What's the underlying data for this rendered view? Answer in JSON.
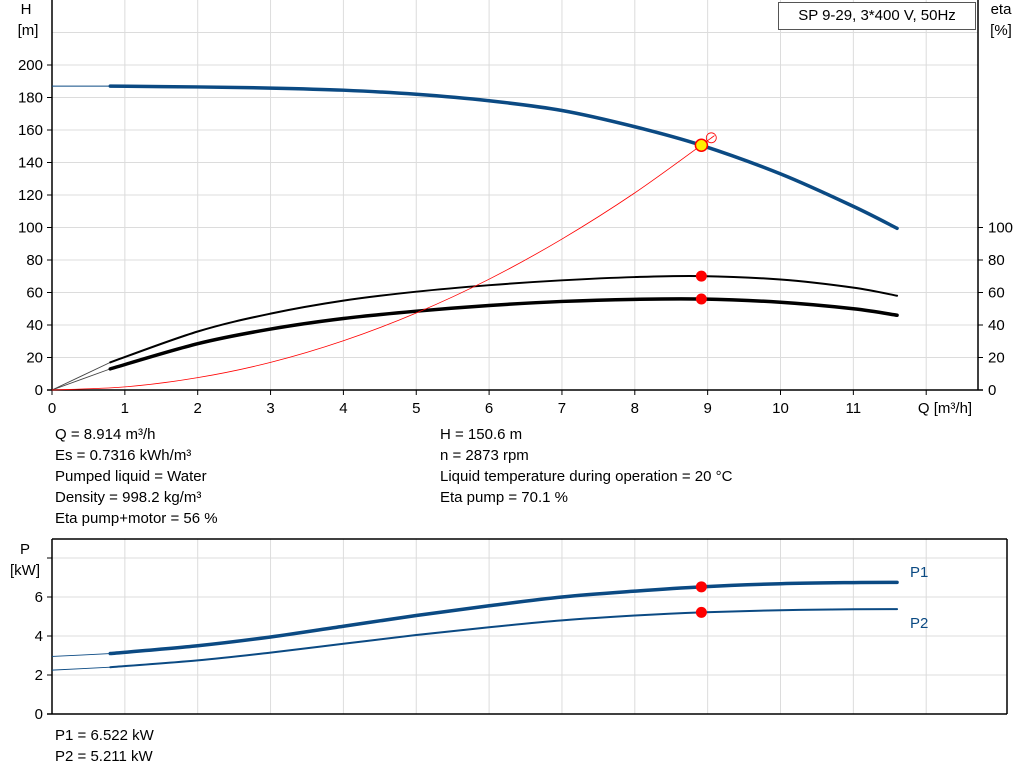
{
  "title": "SP 9-29, 3*400 V, 50Hz",
  "colors": {
    "head": "#0b4a83",
    "eta": "#000000",
    "system": "#ff0000",
    "power": "#0b4a83",
    "dutyPoint": "#ff0000",
    "dutyPointHead": "#ffee00"
  },
  "info_top": {
    "left": [
      "Q = 8.914 m³/h",
      "Es = 0.7316 kWh/m³",
      "Pumped liquid = Water",
      "Density = 998.2 kg/m³",
      "Eta pump+motor = 56 %"
    ],
    "right": [
      "H = 150.6 m",
      "n = 2873 rpm",
      "Liquid temperature during operation = 20 °C",
      "Eta pump = 70.1 %"
    ]
  },
  "info_bottom": [
    "P1 = 6.522 kW",
    "P2 = 5.211 kW"
  ],
  "chart_data": [
    {
      "type": "line",
      "xlabel": "Q [m³/h]",
      "ylabel": "H\n[m]",
      "y2label": "eta\n[%]",
      "xlim": [
        0,
        12.7
      ],
      "ylim": [
        0,
        240
      ],
      "y2lim": [
        0,
        240
      ],
      "xticks": [
        "0",
        "1",
        "2",
        "3",
        "4",
        "5",
        "6",
        "7",
        "8",
        "9",
        "10",
        "11"
      ],
      "yticks": [
        "0",
        "20",
        "40",
        "60",
        "80",
        "100",
        "120",
        "140",
        "160",
        "180",
        "200"
      ],
      "y2ticks": [
        "0",
        "20",
        "40",
        "60",
        "80",
        "100"
      ],
      "grid": true,
      "series": [
        {
          "id": "H",
          "x": [
            0.8,
            2,
            3,
            4,
            5,
            6,
            7,
            8,
            8.914,
            10,
            11,
            11.6
          ],
          "y": [
            187,
            186.5,
            185.8,
            184.5,
            182,
            178,
            172,
            162,
            150.6,
            133,
            113,
            99.5
          ],
          "lead_in": [
            [
              0,
              187
            ],
            [
              0.8,
              187
            ]
          ]
        },
        {
          "id": "eta_pump",
          "x": [
            0.8,
            2,
            3,
            4,
            5,
            6,
            7,
            8,
            8.914,
            10,
            11,
            11.6
          ],
          "y": [
            17,
            36,
            47,
            55,
            60.5,
            64.5,
            67.5,
            69.5,
            70.1,
            68,
            63,
            58
          ],
          "lead_in": [
            [
              0,
              0
            ],
            [
              0.8,
              17
            ]
          ]
        },
        {
          "id": "eta_pump_motor",
          "x": [
            0.8,
            2,
            3,
            4,
            5,
            6,
            7,
            8,
            8.914,
            10,
            11,
            11.6
          ],
          "y": [
            13,
            28.5,
            37.5,
            44,
            48.5,
            52,
            54.5,
            55.8,
            56,
            54,
            50,
            46
          ],
          "lead_in": [
            [
              0,
              0
            ],
            [
              0.8,
              13
            ]
          ]
        },
        {
          "id": "system",
          "x": [
            0,
            1,
            2,
            3,
            4,
            5,
            6,
            7,
            8,
            9,
            9.05
          ],
          "y": [
            0,
            1.9,
            7.6,
            17,
            30.3,
            47.4,
            68.2,
            92.9,
            121.3,
            153.5,
            155.2
          ]
        }
      ],
      "duty_points": [
        {
          "x": 8.914,
          "y": 150.6,
          "kind": "head"
        },
        {
          "x": 8.914,
          "y": 70.1,
          "kind": "eta"
        },
        {
          "x": 8.914,
          "y": 56,
          "kind": "eta"
        }
      ]
    },
    {
      "type": "line",
      "ylabel": "P\n[kW]",
      "xlim": [
        0,
        12.7
      ],
      "ylim": [
        0,
        9
      ],
      "yticks": [
        "0",
        "2",
        "4",
        "6"
      ],
      "grid": true,
      "series": [
        {
          "name": "P1",
          "x": [
            0.8,
            2,
            3,
            4,
            5,
            6,
            7,
            8,
            8.914,
            10,
            11,
            11.6
          ],
          "y": [
            3.1,
            3.5,
            3.95,
            4.5,
            5.05,
            5.55,
            6.0,
            6.3,
            6.522,
            6.68,
            6.74,
            6.75
          ],
          "lead_in": [
            [
              0,
              2.95
            ],
            [
              0.8,
              3.1
            ]
          ]
        },
        {
          "name": "P2",
          "x": [
            0.8,
            2,
            3,
            4,
            5,
            6,
            7,
            8,
            8.914,
            10,
            11,
            11.6
          ],
          "y": [
            2.4,
            2.75,
            3.15,
            3.6,
            4.05,
            4.45,
            4.8,
            5.05,
            5.211,
            5.32,
            5.37,
            5.38
          ],
          "lead_in": [
            [
              0,
              2.25
            ],
            [
              0.8,
              2.4
            ]
          ]
        }
      ],
      "duty_points": [
        {
          "x": 8.914,
          "y": 6.522
        },
        {
          "x": 8.914,
          "y": 5.211
        }
      ]
    }
  ]
}
